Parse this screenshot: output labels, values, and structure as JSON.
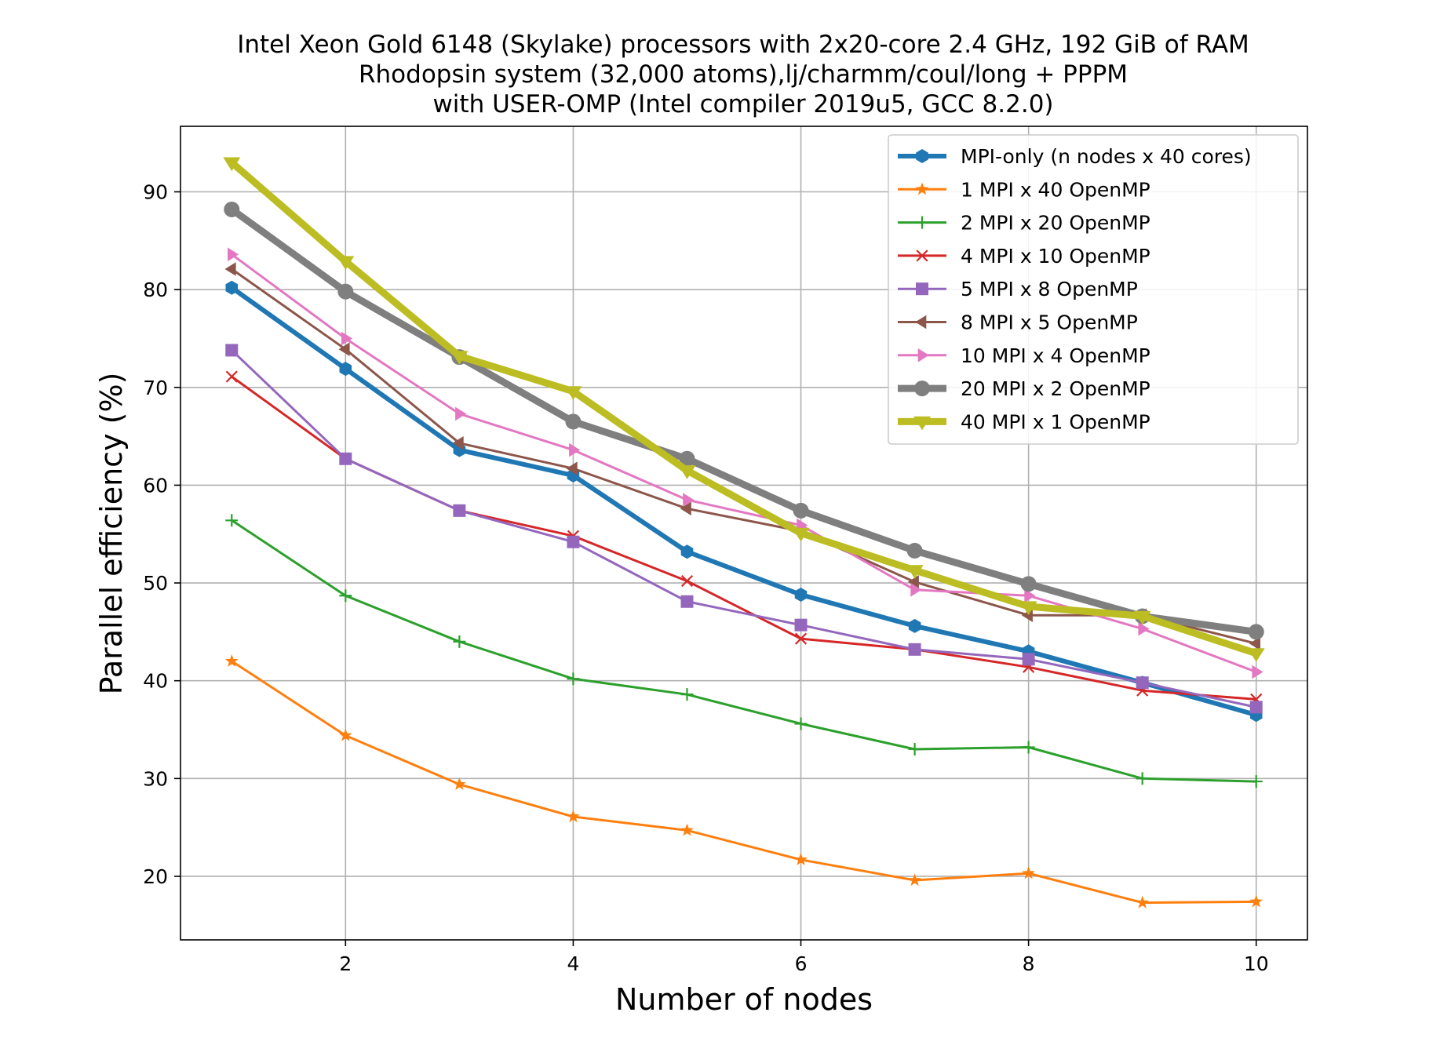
{
  "chart_data": {
    "type": "line",
    "title_lines": [
      "Intel Xeon Gold 6148 (Skylake) processors with 2x20-core 2.4 GHz, 192 GiB of RAM",
      "Rhodopsin system (32,000 atoms),lj/charmm/coul/long + PPPM",
      "with USER-OMP (Intel compiler 2019u5, GCC 8.2.0)"
    ],
    "xlabel": "Number of nodes",
    "ylabel": "Parallel efficiency (%)",
    "xlim": [
      0.55,
      10.45
    ],
    "ylim": [
      13.5,
      96.7
    ],
    "xticks": [
      2,
      4,
      6,
      8,
      10
    ],
    "yticks": [
      20,
      30,
      40,
      50,
      60,
      70,
      80,
      90
    ],
    "grid": true,
    "legend_position": "top-right",
    "x": [
      1,
      2,
      3,
      4,
      5,
      6,
      7,
      8,
      9,
      10
    ],
    "series": [
      {
        "name": "MPI-only (n nodes x 40 cores)",
        "color": "#1f77b4",
        "marker": "hexagon",
        "width": "thick",
        "values": [
          80.2,
          71.9,
          63.6,
          61.0,
          53.2,
          48.8,
          45.6,
          43.0,
          39.8,
          36.5
        ]
      },
      {
        "name": "1 MPI x 40 OpenMP",
        "color": "#ff7f0e",
        "marker": "star",
        "width": "normal",
        "values": [
          42.0,
          34.4,
          29.4,
          26.1,
          24.7,
          21.7,
          19.6,
          20.3,
          17.3,
          17.4
        ]
      },
      {
        "name": "2 MPI x 20 OpenMP",
        "color": "#2ca02c",
        "marker": "plus",
        "width": "normal",
        "values": [
          56.4,
          48.7,
          44.0,
          40.2,
          38.6,
          35.6,
          33.0,
          33.2,
          30.0,
          29.7
        ]
      },
      {
        "name": "4 MPI x 10 OpenMP",
        "color": "#d62728",
        "marker": "x",
        "width": "normal",
        "values": [
          71.1,
          62.7,
          57.4,
          54.8,
          50.2,
          44.3,
          43.2,
          41.4,
          39.0,
          38.1
        ]
      },
      {
        "name": "5 MPI x 8 OpenMP",
        "color": "#9467bd",
        "marker": "square",
        "width": "normal",
        "values": [
          73.8,
          62.7,
          57.4,
          54.2,
          48.1,
          45.7,
          43.2,
          42.2,
          39.8,
          37.3
        ]
      },
      {
        "name": "8 MPI x 5 OpenMP",
        "color": "#8c564b",
        "marker": "triangle-left",
        "width": "normal",
        "values": [
          82.1,
          73.9,
          64.3,
          61.7,
          57.6,
          55.3,
          50.1,
          46.7,
          46.7,
          43.8
        ]
      },
      {
        "name": "10 MPI x 4 OpenMP",
        "color": "#e377c2",
        "marker": "triangle-right",
        "width": "normal",
        "values": [
          83.6,
          75.0,
          67.3,
          63.6,
          58.5,
          55.9,
          49.3,
          48.7,
          45.3,
          40.9
        ]
      },
      {
        "name": "20 MPI x 2 OpenMP",
        "color": "#7f7f7f",
        "marker": "circle",
        "width": "thicker",
        "values": [
          88.2,
          79.8,
          73.1,
          66.5,
          62.7,
          57.4,
          53.3,
          49.9,
          46.6,
          45.0
        ]
      },
      {
        "name": "40 MPI x 1 OpenMP",
        "color": "#bcbd22",
        "marker": "triangle-down",
        "width": "thicker",
        "values": [
          93.0,
          82.9,
          73.2,
          69.6,
          61.5,
          55.1,
          51.3,
          47.6,
          46.6,
          42.8
        ]
      }
    ]
  }
}
